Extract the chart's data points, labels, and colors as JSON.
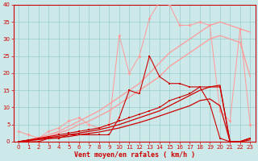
{
  "x": [
    0,
    1,
    2,
    3,
    4,
    5,
    6,
    7,
    8,
    9,
    10,
    11,
    12,
    13,
    14,
    15,
    16,
    17,
    18,
    19,
    20,
    21,
    22,
    23
  ],
  "line_pink_jagged": [
    3,
    2,
    1,
    3,
    4,
    6,
    7,
    5,
    4,
    5,
    31,
    20,
    25,
    36,
    41,
    40,
    34,
    34,
    35,
    34,
    9,
    6,
    33,
    5
  ],
  "line_pink_upper": [
    0,
    0.5,
    1.2,
    2,
    3,
    4.5,
    6,
    7.5,
    9,
    11,
    13,
    15,
    17,
    20,
    23,
    26,
    28,
    30,
    32,
    34,
    35,
    34,
    33,
    32
  ],
  "line_pink_lower": [
    0,
    0.3,
    0.8,
    1.5,
    2.5,
    3.5,
    5,
    6,
    7.5,
    9,
    11,
    13,
    15,
    17,
    19,
    22,
    24,
    26,
    28,
    30,
    31,
    30,
    29,
    19
  ],
  "line_red_jagged": [
    0,
    0,
    0,
    1,
    1,
    2,
    2,
    2,
    2,
    2,
    7,
    15,
    14,
    25,
    19,
    17,
    17,
    16,
    16,
    11,
    1,
    0,
    0,
    1
  ],
  "line_red_smooth_upper": [
    0,
    0.5,
    1,
    1.5,
    2,
    2.5,
    3,
    3.5,
    4,
    5,
    6,
    7,
    8,
    9,
    10,
    12,
    13,
    14,
    16,
    16,
    16,
    0,
    0,
    1
  ],
  "line_red_linear1": [
    0,
    0.4,
    0.8,
    1.2,
    1.6,
    2.0,
    2.5,
    3.0,
    3.5,
    4.2,
    5.0,
    6.0,
    7.0,
    8.0,
    9.0,
    10.5,
    12.0,
    13.5,
    15.0,
    16.0,
    16.5,
    0,
    0,
    1
  ],
  "line_red_linear2": [
    0,
    0.3,
    0.6,
    0.9,
    1.2,
    1.5,
    2.0,
    2.4,
    2.8,
    3.4,
    4.0,
    4.8,
    5.6,
    6.5,
    7.5,
    8.5,
    9.5,
    10.5,
    12.0,
    12.5,
    10.5,
    0,
    0,
    0.5
  ],
  "background_color": "#cce8e8",
  "grid_color": "#99cccc",
  "line_pink_color": "#ff9999",
  "line_red_color": "#cc0000",
  "xlabel": "Vent moyen/en rafales ( km/h )",
  "xlim": [
    -0.5,
    23.5
  ],
  "ylim": [
    0,
    40
  ],
  "yticks": [
    0,
    5,
    10,
    15,
    20,
    25,
    30,
    35,
    40
  ],
  "xticks": [
    0,
    1,
    2,
    3,
    4,
    5,
    6,
    7,
    8,
    9,
    10,
    11,
    12,
    13,
    14,
    15,
    16,
    17,
    18,
    19,
    20,
    21,
    22,
    23
  ]
}
